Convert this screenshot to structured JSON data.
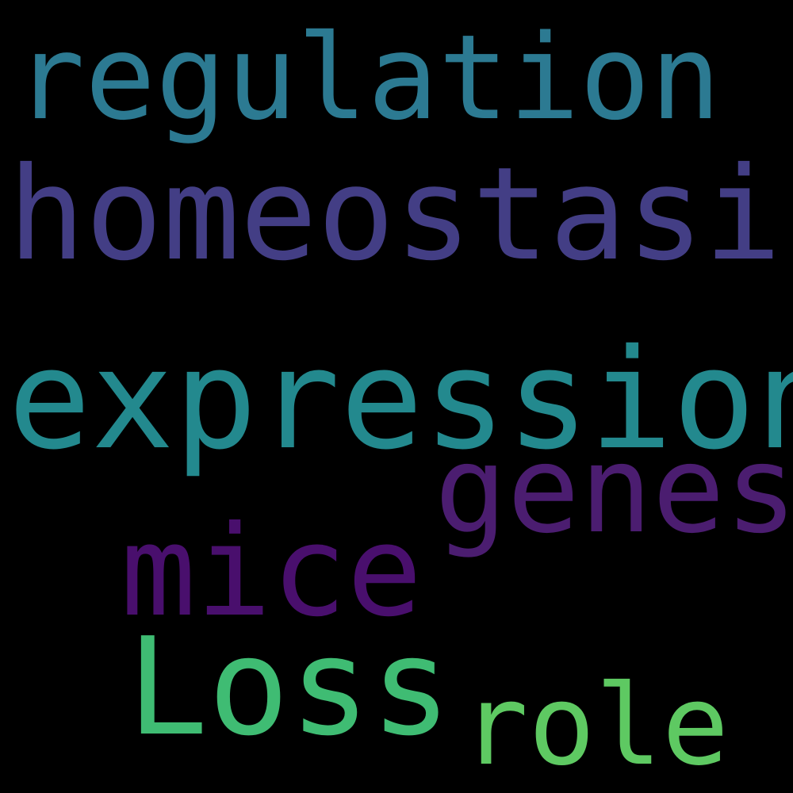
{
  "words": [
    {
      "text": "regulation",
      "color": "#2c7a92"
    },
    {
      "text": "homeostasis",
      "color": "#433e85"
    },
    {
      "text": "expression",
      "color": "#23898e"
    },
    {
      "text": "genes",
      "color": "#4b1d70"
    },
    {
      "text": "mice",
      "color": "#490f6d"
    },
    {
      "text": "Loss",
      "color": "#3fbc73"
    },
    {
      "text": "role",
      "color": "#5ec962"
    }
  ],
  "background": "#000000"
}
